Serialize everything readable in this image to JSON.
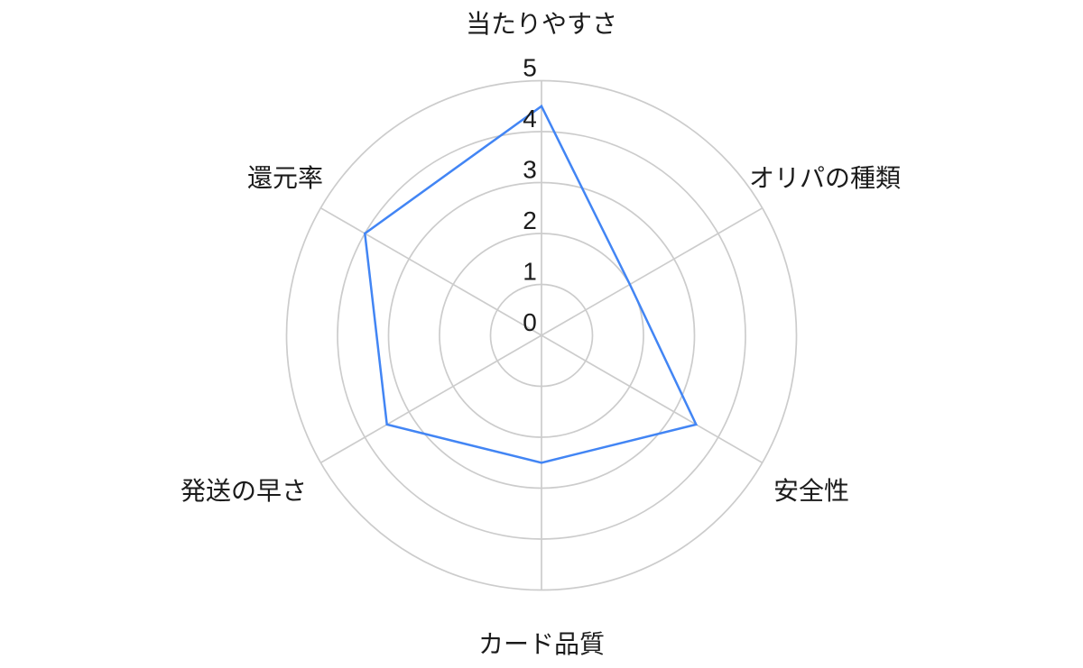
{
  "chart_data": {
    "type": "radar",
    "title": "",
    "categories": [
      "当たりやすさ",
      "オリパの種類",
      "安全性",
      "カード品質",
      "発送の早さ",
      "還元率"
    ],
    "values": [
      4.5,
      2,
      3.5,
      2.5,
      3.5,
      4
    ],
    "tick_labels": [
      "0",
      "1",
      "2",
      "3",
      "4",
      "5"
    ],
    "rlim": [
      0,
      5
    ],
    "grid": true,
    "grid_circles": 5,
    "spokes": 6,
    "legend": false,
    "series_fill": "none",
    "colors": {
      "series_line": "#4285f4",
      "grid_line": "#cccccc",
      "text": "#1b1b1b",
      "background": "#ffffff"
    }
  }
}
